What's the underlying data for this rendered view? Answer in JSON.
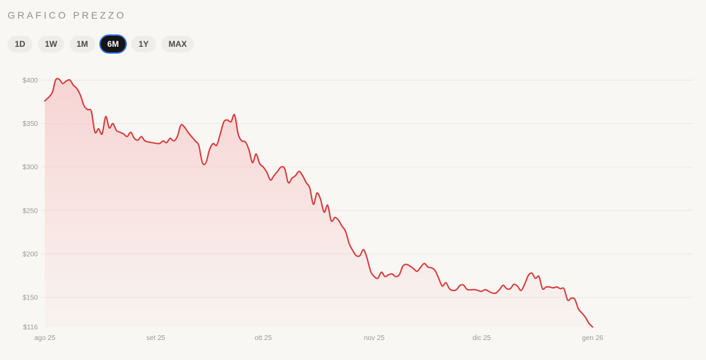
{
  "header": {
    "title": "GRAFICO PREZZO"
  },
  "ranges": [
    {
      "label": "1D",
      "active": false
    },
    {
      "label": "1W",
      "active": false
    },
    {
      "label": "1M",
      "active": false
    },
    {
      "label": "6M",
      "active": true
    },
    {
      "label": "1Y",
      "active": false
    },
    {
      "label": "MAX",
      "active": false
    }
  ],
  "colors": {
    "line": "#d63a3a",
    "fill_top": "#f6c9c9",
    "accent_outline": "#2f6fdb"
  },
  "chart_data": {
    "type": "area",
    "title": "",
    "xlabel": "",
    "ylabel": "",
    "grid": true,
    "ylim": [
      116,
      405
    ],
    "xlim": [
      0,
      181
    ],
    "y_ticks": [
      {
        "value": 400,
        "label": "$400"
      },
      {
        "value": 350,
        "label": "$350"
      },
      {
        "value": 300,
        "label": "$300"
      },
      {
        "value": 250,
        "label": "$250"
      },
      {
        "value": 200,
        "label": "$200"
      },
      {
        "value": 150,
        "label": "$150"
      },
      {
        "value": 116,
        "label": "$116"
      }
    ],
    "x_ticks": [
      {
        "value": 0,
        "label": "ago 25"
      },
      {
        "value": 31,
        "label": "set 25"
      },
      {
        "value": 61,
        "label": "ott 25"
      },
      {
        "value": 92,
        "label": "nov 25"
      },
      {
        "value": 122,
        "label": "dic 25"
      },
      {
        "value": 153,
        "label": "gen 26"
      }
    ],
    "series": [
      {
        "points": [
          [
            0,
            376
          ],
          [
            2,
            385
          ],
          [
            3,
            400
          ],
          [
            4,
            401
          ],
          [
            5,
            396
          ],
          [
            6,
            399
          ],
          [
            7,
            400
          ],
          [
            8,
            394
          ],
          [
            9,
            390
          ],
          [
            10,
            382
          ],
          [
            11,
            370
          ],
          [
            12,
            366
          ],
          [
            13,
            364
          ],
          [
            14,
            340
          ],
          [
            15,
            344
          ],
          [
            16,
            338
          ],
          [
            17,
            358
          ],
          [
            18,
            345
          ],
          [
            19,
            350
          ],
          [
            20,
            342
          ],
          [
            21,
            340
          ],
          [
            22,
            338
          ],
          [
            23,
            335
          ],
          [
            24,
            340
          ],
          [
            25,
            333
          ],
          [
            26,
            331
          ],
          [
            27,
            335
          ],
          [
            28,
            330
          ],
          [
            30,
            328
          ],
          [
            32,
            327
          ],
          [
            33,
            330
          ],
          [
            34,
            328
          ],
          [
            35,
            333
          ],
          [
            36,
            330
          ],
          [
            37,
            335
          ],
          [
            38,
            348
          ],
          [
            39,
            346
          ],
          [
            40,
            340
          ],
          [
            42,
            330
          ],
          [
            43,
            325
          ],
          [
            44,
            305
          ],
          [
            45,
            305
          ],
          [
            46,
            320
          ],
          [
            47,
            327
          ],
          [
            48,
            325
          ],
          [
            49,
            338
          ],
          [
            50,
            352
          ],
          [
            51,
            354
          ],
          [
            52,
            352
          ],
          [
            53,
            360
          ],
          [
            54,
            338
          ],
          [
            55,
            330
          ],
          [
            56,
            329
          ],
          [
            57,
            320
          ],
          [
            58,
            305
          ],
          [
            59,
            315
          ],
          [
            60,
            304
          ],
          [
            61,
            300
          ],
          [
            62,
            294
          ],
          [
            63,
            285
          ],
          [
            64,
            290
          ],
          [
            65,
            295
          ],
          [
            66,
            300
          ],
          [
            67,
            298
          ],
          [
            68,
            282
          ],
          [
            69,
            287
          ],
          [
            70,
            290
          ],
          [
            71,
            295
          ],
          [
            72,
            290
          ],
          [
            73,
            282
          ],
          [
            74,
            276
          ],
          [
            75,
            257
          ],
          [
            76,
            270
          ],
          [
            77,
            263
          ],
          [
            78,
            248
          ],
          [
            79,
            256
          ],
          [
            80,
            238
          ],
          [
            81,
            242
          ],
          [
            82,
            239
          ],
          [
            83,
            232
          ],
          [
            84,
            226
          ],
          [
            85,
            212
          ],
          [
            86,
            204
          ],
          [
            87,
            198
          ],
          [
            88,
            198
          ],
          [
            89,
            205
          ],
          [
            90,
            195
          ],
          [
            91,
            180
          ],
          [
            92,
            174
          ],
          [
            93,
            172
          ],
          [
            94,
            179
          ],
          [
            95,
            174
          ],
          [
            96,
            176
          ],
          [
            97,
            177
          ],
          [
            98,
            174
          ],
          [
            99,
            176
          ],
          [
            100,
            186
          ],
          [
            101,
            188
          ],
          [
            102,
            186
          ],
          [
            103,
            183
          ],
          [
            104,
            180
          ],
          [
            105,
            185
          ],
          [
            106,
            189
          ],
          [
            107,
            185
          ],
          [
            108,
            184
          ],
          [
            109,
            181
          ],
          [
            110,
            172
          ],
          [
            111,
            163
          ],
          [
            112,
            167
          ],
          [
            113,
            160
          ],
          [
            114,
            158
          ],
          [
            115,
            159
          ],
          [
            116,
            164
          ],
          [
            117,
            164
          ],
          [
            118,
            159
          ],
          [
            120,
            159
          ],
          [
            121,
            158
          ],
          [
            122,
            157
          ],
          [
            123,
            159
          ],
          [
            124,
            157
          ],
          [
            125,
            155
          ],
          [
            126,
            155
          ],
          [
            127,
            159
          ],
          [
            128,
            164
          ],
          [
            129,
            160
          ],
          [
            130,
            160
          ],
          [
            131,
            165
          ],
          [
            132,
            163
          ],
          [
            133,
            158
          ],
          [
            134,
            165
          ],
          [
            135,
            175
          ],
          [
            136,
            178
          ],
          [
            137,
            172
          ],
          [
            138,
            174
          ],
          [
            139,
            160
          ],
          [
            140,
            162
          ],
          [
            141,
            162
          ],
          [
            142,
            161
          ],
          [
            143,
            162
          ],
          [
            144,
            160
          ],
          [
            145,
            160
          ],
          [
            146,
            147
          ],
          [
            147,
            149
          ],
          [
            148,
            148
          ],
          [
            149,
            137
          ],
          [
            150,
            132
          ],
          [
            151,
            127
          ],
          [
            152,
            120
          ],
          [
            153,
            116
          ]
        ]
      }
    ]
  }
}
